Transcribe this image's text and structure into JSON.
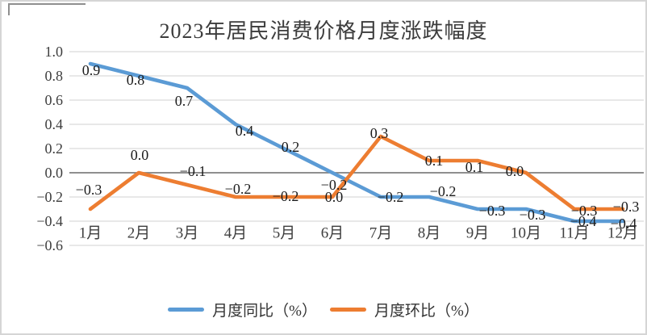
{
  "chart_data": {
    "type": "line",
    "title": "2023年居民消费价格月度涨跌幅度",
    "categories": [
      "1月",
      "2月",
      "3月",
      "4月",
      "5月",
      "6月",
      "7月",
      "8月",
      "9月",
      "10月",
      "11月",
      "12月"
    ],
    "series": [
      {
        "name": "月度同比（%）",
        "color": "#5B9BD5",
        "values": [
          0.9,
          0.8,
          0.7,
          0.4,
          0.2,
          0.0,
          -0.2,
          -0.2,
          -0.3,
          -0.3,
          -0.4,
          -0.4
        ],
        "labels": [
          "0.9",
          "0.8",
          "0.7",
          "0.4",
          "0.2",
          "0.0",
          "−0.2",
          "−0.2",
          "−0.3",
          "−0.3",
          "−0.4",
          "−0.4"
        ]
      },
      {
        "name": "月度环比（%）",
        "color": "#ED7D31",
        "values": [
          -0.3,
          0.0,
          -0.1,
          -0.2,
          -0.2,
          -0.2,
          0.3,
          0.1,
          0.1,
          0.0,
          -0.3,
          -0.3
        ],
        "labels": [
          "−0.3",
          "0.0",
          "−0.1",
          "−0.2",
          "−0.2",
          "−0.2",
          "0.3",
          "0.1",
          "0.1",
          "0.0",
          "−0.3",
          "−0.3"
        ]
      }
    ],
    "y_axis": {
      "min": -0.6,
      "max": 1.0,
      "step": 0.2,
      "tick_labels": [
        "1.0",
        "0.8",
        "0.6",
        "0.4",
        "0.2",
        "0.0",
        "−0.2",
        "−0.4",
        "−0.6"
      ]
    },
    "grid": true,
    "legend_position": "bottom"
  },
  "colors": {
    "series_yoy": "#5B9BD5",
    "series_mom": "#ED7D31",
    "gridline": "#D9D9D9",
    "zero_line": "#7F7F7F",
    "axis_text": "#3E3E3E",
    "data_label_text": "#1C1C1C",
    "border": "#D5D5D5"
  }
}
